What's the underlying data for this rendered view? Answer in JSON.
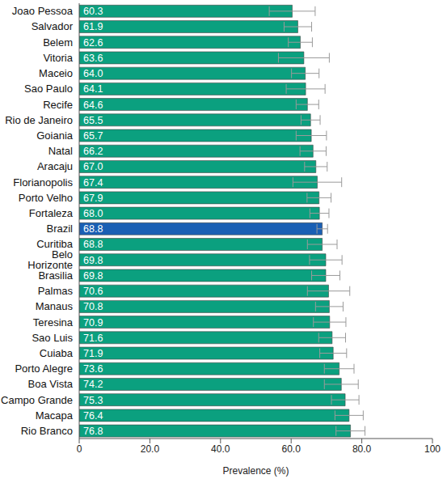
{
  "chart_data": {
    "type": "bar",
    "orientation": "horizontal",
    "x_label": "Prevalence (%)",
    "categories": [
      "Joao Pessoa",
      "Salvador",
      "Belem",
      "Vitoria",
      "Maceio",
      "Sao Paulo",
      "Recife",
      "Rio de Janeiro",
      "Goiania",
      "Natal",
      "Aracaju",
      "Florianopolis",
      "Porto Velho",
      "Fortaleza",
      "Brazil",
      "Curitiba",
      "Belo Horizonte",
      "Brasilia",
      "Palmas",
      "Manaus",
      "Teresina",
      "Sao Luis",
      "Cuiaba",
      "Porto Alegre",
      "Boa Vista",
      "Campo Grande",
      "Macapa",
      "Rio Branco"
    ],
    "values": [
      60.3,
      61.9,
      62.6,
      63.6,
      64.0,
      64.1,
      64.6,
      65.5,
      65.7,
      66.2,
      67.0,
      67.4,
      67.9,
      68.0,
      68.8,
      68.8,
      69.8,
      69.8,
      70.6,
      70.8,
      70.9,
      71.6,
      71.9,
      73.6,
      74.2,
      75.3,
      76.4,
      76.8
    ],
    "value_labels": [
      "60.3",
      "61.9",
      "62.6",
      "63.6",
      "64.0",
      "64.1",
      "64.6",
      "65.5",
      "65.7",
      "66.2",
      "67.0",
      "67.4",
      "67.9",
      "68.0",
      "68.8",
      "68.8",
      "69.8",
      "69.8",
      "70.6",
      "70.8",
      "70.9",
      "71.6",
      "71.9",
      "73.6",
      "74.2",
      "75.3",
      "76.4",
      "76.8"
    ],
    "errors": [
      6.5,
      3.9,
      3.4,
      7.2,
      3.9,
      5.5,
      3.2,
      2.7,
      4.3,
      3.7,
      3.2,
      6.9,
      3.4,
      2.7,
      1.5,
      4.2,
      4.6,
      4.0,
      6.0,
      3.9,
      4.6,
      3.8,
      3.8,
      4.2,
      4.8,
      3.9,
      4.0,
      4.1
    ],
    "colors": [
      "#0ba07f",
      "#0ba07f",
      "#0ba07f",
      "#0ba07f",
      "#0ba07f",
      "#0ba07f",
      "#0ba07f",
      "#0ba07f",
      "#0ba07f",
      "#0ba07f",
      "#0ba07f",
      "#0ba07f",
      "#0ba07f",
      "#0ba07f",
      "#1a5fb4",
      "#0ba07f",
      "#0ba07f",
      "#0ba07f",
      "#0ba07f",
      "#0ba07f",
      "#0ba07f",
      "#0ba07f",
      "#0ba07f",
      "#0ba07f",
      "#0ba07f",
      "#0ba07f",
      "#0ba07f",
      "#0ba07f"
    ],
    "xlim": [
      0,
      100
    ],
    "xticks": [
      0,
      {
        "value": 20,
        "label": "20.0"
      },
      {
        "value": 40,
        "label": "40.0"
      },
      {
        "value": 60,
        "label": "60.0"
      },
      {
        "value": 80,
        "label": "80.0"
      },
      100
    ],
    "data_labels": true,
    "grid": false
  }
}
